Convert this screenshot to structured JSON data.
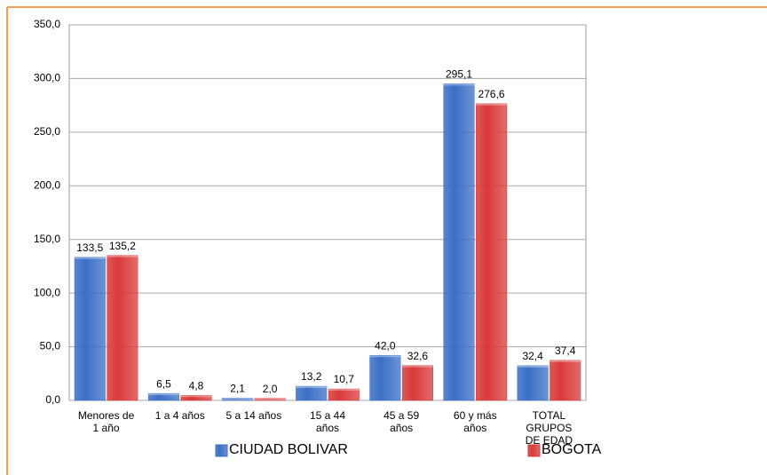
{
  "chart_data": {
    "type": "bar",
    "categories": [
      "Menores de 1 año",
      "1 a 4 años",
      "5 a 14 años",
      "15 a 44 años",
      "45 a 59 años",
      "60 y más años",
      "TOTAL GRUPOS DE EDAD"
    ],
    "series": [
      {
        "name": "CIUDAD BOLIVAR",
        "color": "#3b6fc6",
        "values": [
          133.5,
          6.5,
          2.1,
          13.2,
          42.0,
          295.1,
          32.4
        ],
        "value_labels": [
          "133,5",
          "6,5",
          "2,1",
          "13,2",
          "42,0",
          "295,1",
          "32,4"
        ]
      },
      {
        "name": "BOGOTA",
        "color": "#d93a3a",
        "values": [
          135.2,
          4.8,
          2.0,
          10.7,
          32.6,
          276.6,
          37.4
        ],
        "value_labels": [
          "135,2",
          "4,8",
          "2,0",
          "10,7",
          "32,6",
          "276,6",
          "37,4"
        ]
      }
    ],
    "ylim": [
      0,
      350
    ],
    "yticks": [
      {
        "value": 0,
        "label": "0,0"
      },
      {
        "value": 50,
        "label": "50,0"
      },
      {
        "value": 100,
        "label": "100,0"
      },
      {
        "value": 150,
        "label": "150,0"
      },
      {
        "value": 200,
        "label": "200,0"
      },
      {
        "value": 250,
        "label": "250,0"
      },
      {
        "value": 300,
        "label": "300,0"
      },
      {
        "value": 350,
        "label": "350,0"
      }
    ],
    "grid": true
  }
}
